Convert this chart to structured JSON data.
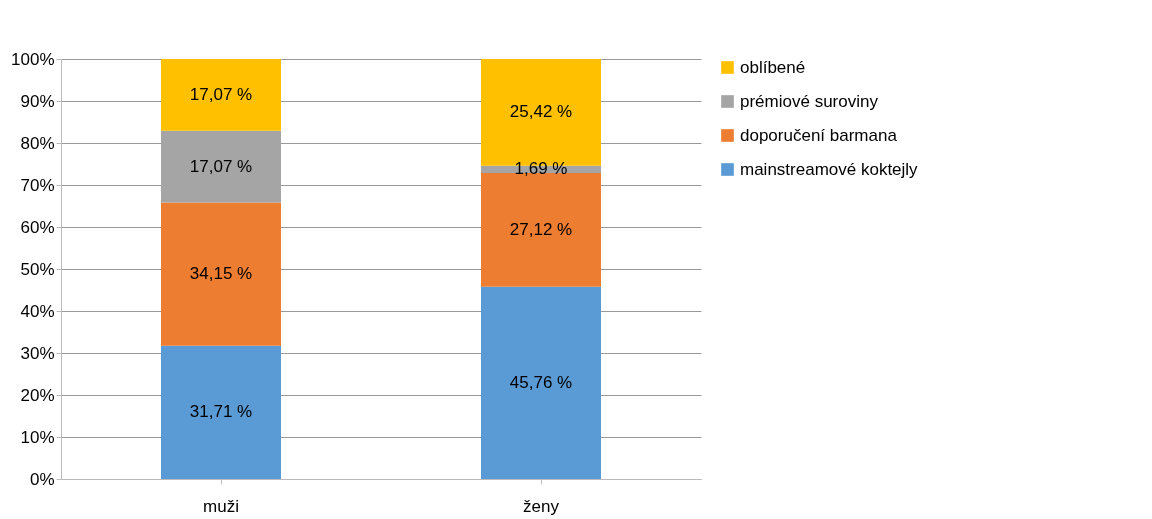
{
  "chart_data": {
    "type": "bar",
    "stacked": true,
    "categories": [
      "muži",
      "ženy"
    ],
    "series": [
      {
        "name": "mainstreamové koktejly",
        "color": "#5b9bd5",
        "values": [
          31.71,
          45.76
        ],
        "value_labels": [
          "31,71 %",
          "45,76 %"
        ]
      },
      {
        "name": "doporučení barmana",
        "color": "#ed7d31",
        "values": [
          34.15,
          27.12
        ],
        "value_labels": [
          "34,15 %",
          "27,12 %"
        ]
      },
      {
        "name": "prémiové suroviny",
        "color": "#a5a5a5",
        "values": [
          17.07,
          1.69
        ],
        "value_labels": [
          "17,07 %",
          "1,69 %"
        ]
      },
      {
        "name": "oblíbené",
        "color": "#ffc000",
        "values": [
          17.07,
          25.42
        ],
        "value_labels": [
          "17,07 %",
          "25,42 %"
        ]
      }
    ],
    "ylim": [
      0,
      100
    ],
    "yticks": [
      {
        "value": 0,
        "label": "0%"
      },
      {
        "value": 10,
        "label": "10%"
      },
      {
        "value": 20,
        "label": "20%"
      },
      {
        "value": 30,
        "label": "30%"
      },
      {
        "value": 40,
        "label": "40%"
      },
      {
        "value": 50,
        "label": "50%"
      },
      {
        "value": 60,
        "label": "60%"
      },
      {
        "value": 70,
        "label": "70%"
      },
      {
        "value": 80,
        "label": "80%"
      },
      {
        "value": 90,
        "label": "90%"
      },
      {
        "value": 100,
        "label": "100%"
      }
    ],
    "grid": "y",
    "legend": "right"
  }
}
